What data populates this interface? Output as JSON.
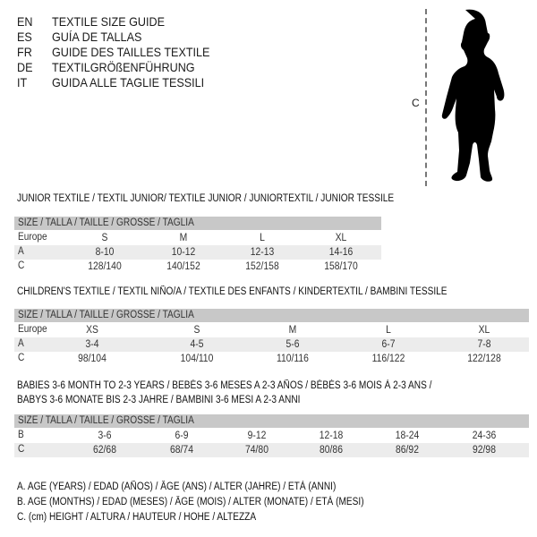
{
  "languages": [
    {
      "code": "EN",
      "title": "TEXTILE SIZE GUIDE"
    },
    {
      "code": "ES",
      "title": "GUÍA DE TALLAS"
    },
    {
      "code": "FR",
      "title": "GUIDE DES TAILLES TEXTILE"
    },
    {
      "code": "DE",
      "title": "TEXTILGRÖßENFÜHRUNG"
    },
    {
      "code": "IT",
      "title": "GUIDA ALLE TAGLIE TESSILI"
    }
  ],
  "figure": {
    "measure_label": "C",
    "icon": "baby-silhouette"
  },
  "size_header": "SIZE / TALLA / TAILLE / GRÖSSE / TAGLIA",
  "tables": [
    {
      "title": "JUNIOR TEXTILE / TEXTIL JUNIOR/ TEXTILE JUNIOR / JUNIORTEXTIL / JUNIOR TESSILE",
      "rows": [
        {
          "label": "Europe",
          "values": [
            "S",
            "M",
            "L",
            "XL"
          ]
        },
        {
          "label": "A",
          "values": [
            "8-10",
            "10-12",
            "12-13",
            "14-16"
          ]
        },
        {
          "label": "C",
          "values": [
            "128/140",
            "140/152",
            "152/158",
            "158/170"
          ]
        }
      ]
    },
    {
      "title": "CHILDREN'S TEXTILE / TEXTIL NIÑO/A / TEXTILE DES ENFANTS / KINDERTEXTIL / BAMBINI TESSILE",
      "rows": [
        {
          "label": "Europe",
          "values": [
            "XS",
            "S",
            "M",
            "L",
            "XL"
          ]
        },
        {
          "label": "A",
          "values": [
            "3-4",
            "4-5",
            "5-6",
            "6-7",
            "7-8"
          ]
        },
        {
          "label": "C",
          "values": [
            "98/104",
            "104/110",
            "110/116",
            "116/122",
            "122/128"
          ]
        }
      ]
    },
    {
      "title": "BABIES 3-6 MONTH TO 2-3 YEARS / BEBÉS 3-6 MESES A 2-3 AÑOS / BÉBÉS 3-6 MOIS À 2-3 ANS /",
      "title2": "BABYS 3-6 MONATE BIS 2-3 JAHRE / BAMBINI 3-6 MESI A 2-3 ANNI",
      "rows": [
        {
          "label": "B",
          "values": [
            "3-6",
            "6-9",
            "9-12",
            "12-18",
            "18-24",
            "24-36"
          ]
        },
        {
          "label": "C",
          "values": [
            "62/68",
            "68/74",
            "74/80",
            "80/86",
            "86/92",
            "92/98"
          ]
        }
      ]
    }
  ],
  "legend": [
    "A. AGE (YEARS) / EDAD (AÑOS) / ÂGE (ANS) / ALTER (JAHRE) / ETÀ (ANNI)",
    "B. AGE (MONTHS) / EDAD (MESES) / ÂGE (MOIS) / ALTER (MONATE) / ETÀ (MESI)",
    "C. (cm) HEIGHT / ALTURA / HAUTEUR / HÖHE / ALTEZZA"
  ]
}
